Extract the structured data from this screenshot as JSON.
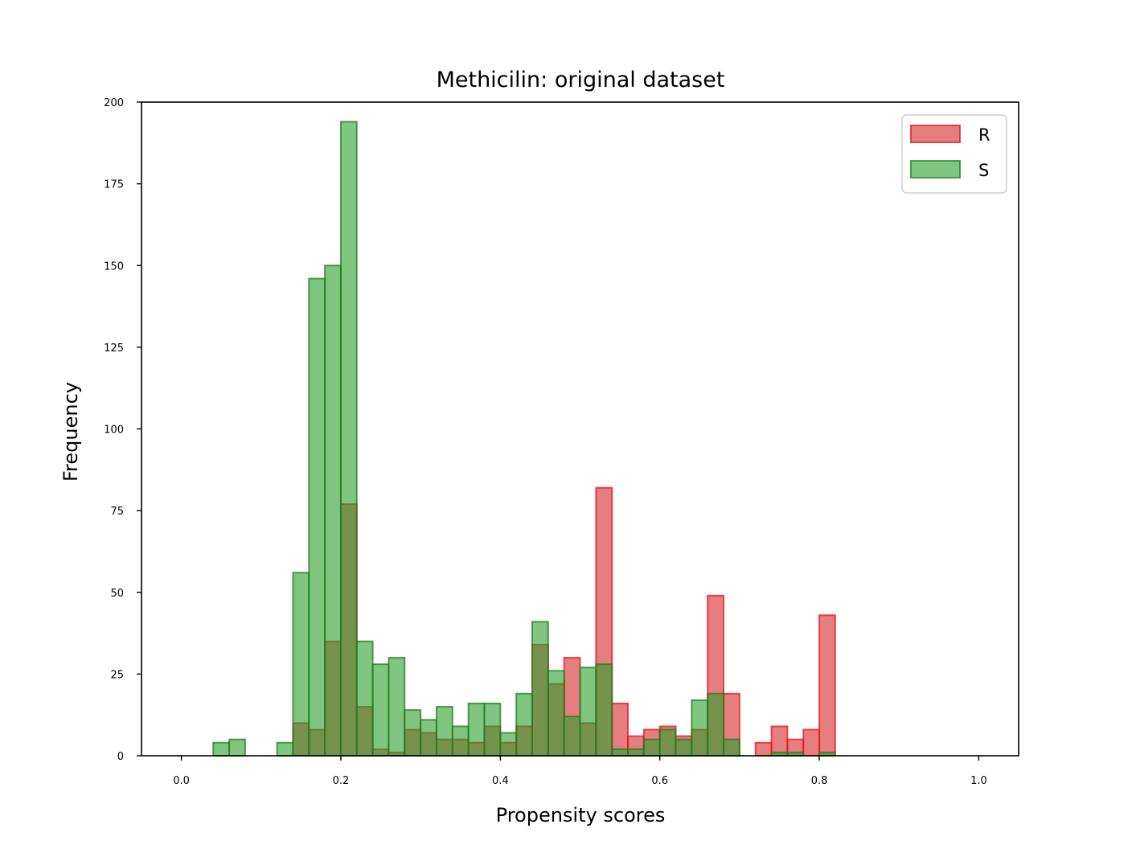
{
  "chart_data": {
    "type": "bar",
    "title": "Methicilin: original dataset",
    "xlabel": "Propensity scores",
    "ylabel": "Frequency",
    "xlim": [
      -0.05,
      1.05
    ],
    "ylim": [
      0,
      200
    ],
    "xticks": [
      "0.0",
      "0.2",
      "0.4",
      "0.6",
      "0.8",
      "1.0"
    ],
    "yticks": [
      "0",
      "25",
      "50",
      "75",
      "100",
      "125",
      "150",
      "175",
      "200"
    ],
    "legend_position": "top-right",
    "bin_width": 0.02,
    "series": [
      {
        "name": "R",
        "color": "#d62728",
        "edge_color": "#e8141e",
        "bins": [
          {
            "x": 0.14,
            "y": 10
          },
          {
            "x": 0.16,
            "y": 8
          },
          {
            "x": 0.18,
            "y": 35
          },
          {
            "x": 0.2,
            "y": 77
          },
          {
            "x": 0.22,
            "y": 15
          },
          {
            "x": 0.24,
            "y": 2
          },
          {
            "x": 0.26,
            "y": 1
          },
          {
            "x": 0.28,
            "y": 8
          },
          {
            "x": 0.3,
            "y": 7
          },
          {
            "x": 0.32,
            "y": 5
          },
          {
            "x": 0.34,
            "y": 5
          },
          {
            "x": 0.36,
            "y": 4
          },
          {
            "x": 0.38,
            "y": 9
          },
          {
            "x": 0.4,
            "y": 4
          },
          {
            "x": 0.42,
            "y": 9
          },
          {
            "x": 0.44,
            "y": 34
          },
          {
            "x": 0.46,
            "y": 22
          },
          {
            "x": 0.48,
            "y": 30
          },
          {
            "x": 0.5,
            "y": 10
          },
          {
            "x": 0.52,
            "y": 82
          },
          {
            "x": 0.54,
            "y": 16
          },
          {
            "x": 0.56,
            "y": 6
          },
          {
            "x": 0.58,
            "y": 8
          },
          {
            "x": 0.6,
            "y": 9
          },
          {
            "x": 0.62,
            "y": 6
          },
          {
            "x": 0.64,
            "y": 8
          },
          {
            "x": 0.66,
            "y": 49
          },
          {
            "x": 0.68,
            "y": 19
          },
          {
            "x": 0.72,
            "y": 4
          },
          {
            "x": 0.74,
            "y": 9
          },
          {
            "x": 0.76,
            "y": 5
          },
          {
            "x": 0.78,
            "y": 8
          },
          {
            "x": 0.8,
            "y": 43
          }
        ]
      },
      {
        "name": "S",
        "color": "#2ca02c",
        "edge_color": "#1f7f1f",
        "bins": [
          {
            "x": 0.04,
            "y": 4
          },
          {
            "x": 0.06,
            "y": 5
          },
          {
            "x": 0.12,
            "y": 4
          },
          {
            "x": 0.14,
            "y": 56
          },
          {
            "x": 0.16,
            "y": 146
          },
          {
            "x": 0.18,
            "y": 150
          },
          {
            "x": 0.2,
            "y": 194
          },
          {
            "x": 0.22,
            "y": 35
          },
          {
            "x": 0.24,
            "y": 28
          },
          {
            "x": 0.26,
            "y": 30
          },
          {
            "x": 0.28,
            "y": 14
          },
          {
            "x": 0.3,
            "y": 11
          },
          {
            "x": 0.32,
            "y": 15
          },
          {
            "x": 0.34,
            "y": 9
          },
          {
            "x": 0.36,
            "y": 16
          },
          {
            "x": 0.38,
            "y": 16
          },
          {
            "x": 0.4,
            "y": 7
          },
          {
            "x": 0.42,
            "y": 19
          },
          {
            "x": 0.44,
            "y": 41
          },
          {
            "x": 0.46,
            "y": 26
          },
          {
            "x": 0.48,
            "y": 12
          },
          {
            "x": 0.5,
            "y": 27
          },
          {
            "x": 0.52,
            "y": 28
          },
          {
            "x": 0.54,
            "y": 2
          },
          {
            "x": 0.56,
            "y": 2
          },
          {
            "x": 0.58,
            "y": 5
          },
          {
            "x": 0.6,
            "y": 8
          },
          {
            "x": 0.62,
            "y": 5
          },
          {
            "x": 0.64,
            "y": 17
          },
          {
            "x": 0.66,
            "y": 19
          },
          {
            "x": 0.68,
            "y": 5
          },
          {
            "x": 0.74,
            "y": 1
          },
          {
            "x": 0.76,
            "y": 1
          },
          {
            "x": 0.8,
            "y": 1
          }
        ]
      }
    ]
  }
}
